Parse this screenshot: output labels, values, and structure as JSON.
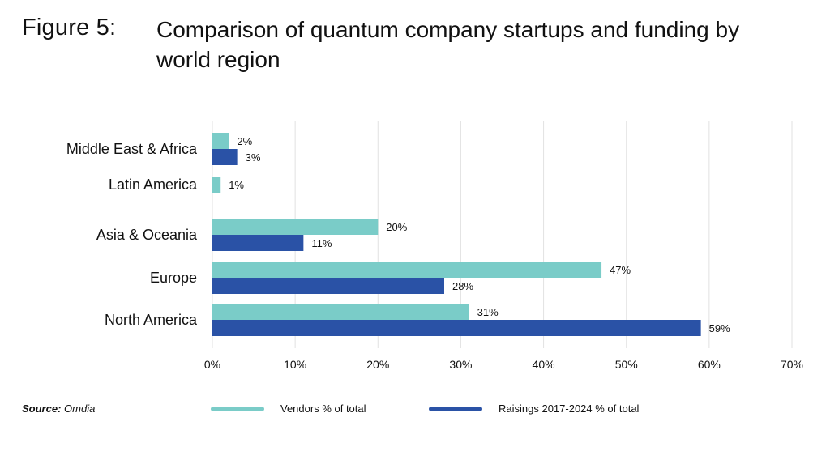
{
  "figure": {
    "label": "Figure 5:",
    "title": "Comparison of quantum company startups and funding by world region"
  },
  "source": {
    "prefix": "Source:",
    "text": " Omdia"
  },
  "colors": {
    "vendors": "#7ACCC8",
    "raisings": "#2A52A6",
    "grid": "#e2e2e2"
  },
  "chart_data": {
    "type": "bar",
    "orientation": "horizontal",
    "categories": [
      "Middle East & Africa",
      "Latin America",
      "Asia & Oceania",
      "Europe",
      "North America"
    ],
    "series": [
      {
        "name": "Vendors % of total",
        "values": [
          2,
          1,
          20,
          47,
          31
        ],
        "labels": [
          "2%",
          "1%",
          "20%",
          "47%",
          "31%"
        ]
      },
      {
        "name": "Raisings 2017-2024 % of total",
        "values": [
          3,
          null,
          11,
          28,
          59
        ],
        "labels": [
          "3%",
          "",
          "11%",
          "28%",
          "59%"
        ]
      }
    ],
    "x_ticks": [
      "0%",
      "10%",
      "20%",
      "30%",
      "40%",
      "50%",
      "60%",
      "70%"
    ],
    "xlim": [
      0,
      70
    ],
    "grid": true,
    "legend_position": "bottom"
  }
}
